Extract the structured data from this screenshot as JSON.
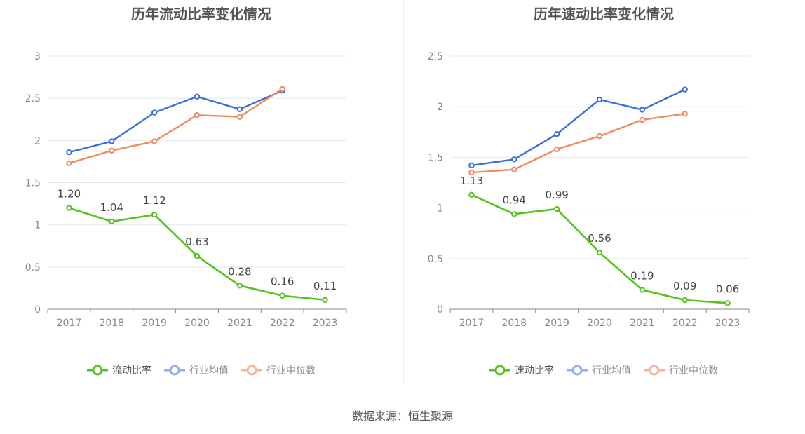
{
  "source": "数据来源：恒生聚源",
  "colors": {
    "main": "#52c41a",
    "avg": "#3a6fd8",
    "median": "#f08a5d",
    "avg_legend": "#8fb0ec",
    "median_legend": "#f5b59a"
  },
  "chart_data": [
    {
      "type": "line",
      "title": "历年流动比率变化情况",
      "categories": [
        "2017",
        "2018",
        "2019",
        "2020",
        "2021",
        "2022",
        "2023"
      ],
      "ylim": [
        0,
        3
      ],
      "yticks": [
        0,
        0.5,
        1,
        1.5,
        2,
        2.5,
        3
      ],
      "ytick_labels": [
        "0",
        "0.5",
        "1",
        "1.5",
        "2",
        "2.5",
        "3"
      ],
      "grid": true,
      "legend_position": "bottom",
      "series": [
        {
          "name": "流动比率",
          "key": "main",
          "values": [
            1.2,
            1.04,
            1.12,
            0.63,
            0.28,
            0.16,
            0.11
          ],
          "labels": [
            "1.20",
            "1.04",
            "1.12",
            "0.63",
            "0.28",
            "0.16",
            "0.11"
          ]
        },
        {
          "name": "行业均值",
          "key": "avg",
          "values": [
            1.86,
            1.99,
            2.33,
            2.52,
            2.37,
            2.59,
            null
          ]
        },
        {
          "name": "行业中位数",
          "key": "median",
          "values": [
            1.73,
            1.88,
            1.99,
            2.3,
            2.28,
            2.61,
            null
          ]
        }
      ]
    },
    {
      "type": "line",
      "title": "历年速动比率变化情况",
      "categories": [
        "2017",
        "2018",
        "2019",
        "2020",
        "2021",
        "2022",
        "2023"
      ],
      "ylim": [
        0,
        2.5
      ],
      "yticks": [
        0,
        0.5,
        1,
        1.5,
        2,
        2.5
      ],
      "ytick_labels": [
        "0",
        "0.5",
        "1",
        "1.5",
        "2",
        "2.5"
      ],
      "grid": true,
      "legend_position": "bottom",
      "series": [
        {
          "name": "速动比率",
          "key": "main",
          "values": [
            1.13,
            0.94,
            0.99,
            0.56,
            0.19,
            0.09,
            0.06
          ],
          "labels": [
            "1.13",
            "0.94",
            "0.99",
            "0.56",
            "0.19",
            "0.09",
            "0.06"
          ]
        },
        {
          "name": "行业均值",
          "key": "avg",
          "values": [
            1.42,
            1.48,
            1.73,
            2.07,
            1.97,
            2.17,
            null
          ]
        },
        {
          "name": "行业中位数",
          "key": "median",
          "values": [
            1.35,
            1.38,
            1.58,
            1.71,
            1.87,
            1.93,
            null
          ]
        }
      ]
    }
  ]
}
